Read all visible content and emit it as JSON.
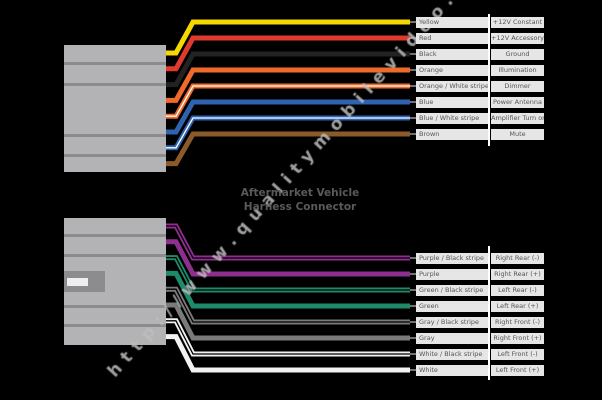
{
  "title_lines": [
    "Aftermarket Vehicle",
    "Harness Connector"
  ],
  "watermark": "http://www.qualitymobilevideo.com",
  "top_wires": [
    {
      "color_name": "Yellow",
      "function": "+12V Constant",
      "color": "#f5d800",
      "stripe": null
    },
    {
      "color_name": "Red",
      "function": "+12V Accessory",
      "color": "#e03a2f",
      "stripe": null
    },
    {
      "color_name": "Black",
      "function": "Ground",
      "color": "#222222",
      "stripe": null
    },
    {
      "color_name": "Orange",
      "function": "Illumination",
      "color": "#f06a2a",
      "stripe": null
    },
    {
      "color_name": "Orange / White stripe",
      "function": "Dimmer",
      "color": "#f06a2a",
      "stripe": "#ffffff"
    },
    {
      "color_name": "Blue",
      "function": "Power Antenna",
      "color": "#2f62b0",
      "stripe": null
    },
    {
      "color_name": "Blue / White stripe",
      "function": "Amplifier Turn on",
      "color": "#2f62b0",
      "stripe": "#ffffff"
    },
    {
      "color_name": "Brown",
      "function": "Mute",
      "color": "#8a5a2a",
      "stripe": null
    }
  ],
  "bottom_wires": [
    {
      "color_name": "Purple / Black stripe",
      "function": "Right Rear (-)",
      "color": "#8e2f8e",
      "stripe": "#000000"
    },
    {
      "color_name": "Purple",
      "function": "Right Rear (+)",
      "color": "#8e2f8e",
      "stripe": null
    },
    {
      "color_name": "Green / Black stripe",
      "function": "Left Rear (-)",
      "color": "#1f8a6a",
      "stripe": "#000000"
    },
    {
      "color_name": "Green",
      "function": "Left Rear (+)",
      "color": "#1f8a6a",
      "stripe": null
    },
    {
      "color_name": "Gray / Black stripe",
      "function": "Right Front (-)",
      "color": "#7a7a7a",
      "stripe": "#000000"
    },
    {
      "color_name": "Gray",
      "function": "Right Front (+)",
      "color": "#7a7a7a",
      "stripe": null
    },
    {
      "color_name": "White / Black stripe",
      "function": "Left Front (-)",
      "color": "#f2f2f2",
      "stripe": "#000000"
    },
    {
      "color_name": "White",
      "function": "Left Front (+)",
      "color": "#f2f2f2",
      "stripe": null
    }
  ],
  "colors": {
    "connector": "#b3b3b5",
    "connector_divider": "#8c8c8e",
    "label_bg": "#e6e6e6"
  }
}
